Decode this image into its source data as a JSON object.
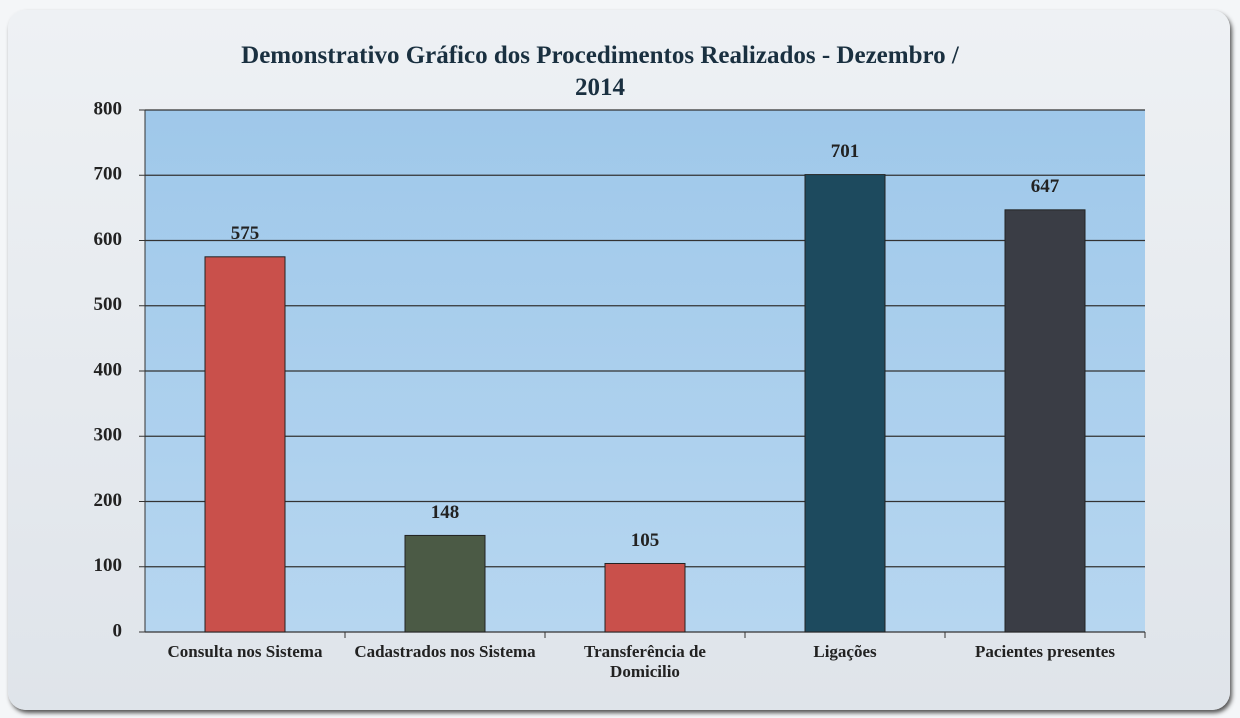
{
  "chart_data": {
    "type": "bar",
    "title": "Demonstrativo Gráfico dos Procedimentos Realizados - Dezembro / 2014",
    "categories": [
      "Consulta nos Sistema",
      "Cadastrados nos Sistema",
      "Transferência de Domicilio",
      "Ligações",
      "Pacientes presentes"
    ],
    "values": [
      575,
      148,
      105,
      701,
      647
    ],
    "colors": [
      "#c9504b",
      "#4b5a45",
      "#c9504b",
      "#1d4a5e",
      "#3a3d45"
    ],
    "ylim": [
      0,
      800
    ],
    "yticks": [
      0,
      100,
      200,
      300,
      400,
      500,
      600,
      700,
      800
    ],
    "grid": true
  }
}
